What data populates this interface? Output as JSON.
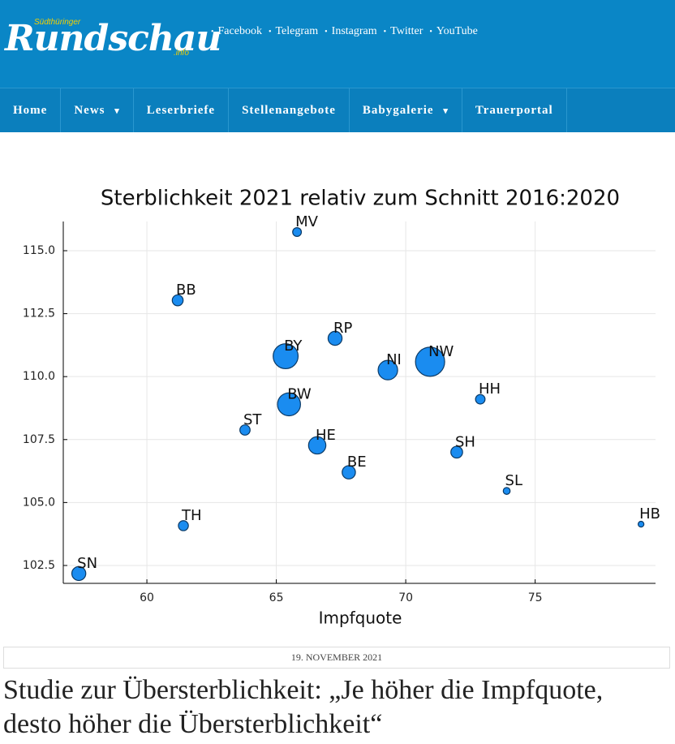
{
  "header": {
    "logo_small": "Südthüringer",
    "logo": "Rundschau",
    "logo_suffix": ".info",
    "social": [
      "Facebook",
      "Telegram",
      "Instagram",
      "Twitter",
      "YouTube"
    ]
  },
  "nav": [
    "Home",
    "News",
    "Leserbriefe",
    "Stellenangebote",
    "Babygalerie",
    "Trauerportal"
  ],
  "chart_data": {
    "type": "scatter",
    "title": "Sterblichkeit 2021 relativ zum Schnitt 2016:2020",
    "x_label": "Impfquote",
    "color": "#1a8cf0",
    "labels": [
      "MV",
      "BB",
      "RP",
      "BY",
      "NI",
      "NW",
      "HH",
      "BW",
      "ST",
      "HE",
      "SH",
      "BE",
      "SL",
      "HB",
      "TH",
      "SN"
    ],
    "x": [
      65.8,
      61.19,
      67.27,
      65.36,
      69.31,
      70.94,
      72.88,
      65.49,
      63.79,
      66.58,
      71.97,
      67.8,
      73.9,
      79.09,
      61.41,
      57.37
    ],
    "values": [
      115.74,
      113.03,
      111.52,
      110.81,
      110.26,
      110.59,
      109.1,
      108.9,
      107.88,
      107.27,
      107.0,
      106.2,
      105.46,
      104.14,
      104.08,
      102.18
    ],
    "sizes": [
      1.6,
      2.5,
      4.1,
      13.1,
      8.0,
      17.9,
      1.9,
      11.1,
      2.2,
      6.3,
      2.9,
      3.7,
      1.0,
      0.7,
      2.1,
      4.1
    ],
    "xlim": [
      56.77,
      79.65
    ],
    "ylim": [
      101.79,
      116.16
    ],
    "xticks": [
      60,
      65,
      70,
      75
    ],
    "yticks": [
      {
        "value": 102.5,
        "label": "102.5"
      },
      {
        "value": 105,
        "label": "105.0"
      },
      {
        "value": 107.5,
        "label": "107.5"
      },
      {
        "value": 110,
        "label": "110.0"
      },
      {
        "value": 112.5,
        "label": "112.5"
      },
      {
        "value": 115,
        "label": "115.0"
      }
    ],
    "grid": true
  },
  "article": {
    "date": "19. NOVEMBER 2021",
    "title": "Studie zur Übersterblichkeit: „Je höher die Impfquote, desto höher die Übersterblichkeit“"
  }
}
